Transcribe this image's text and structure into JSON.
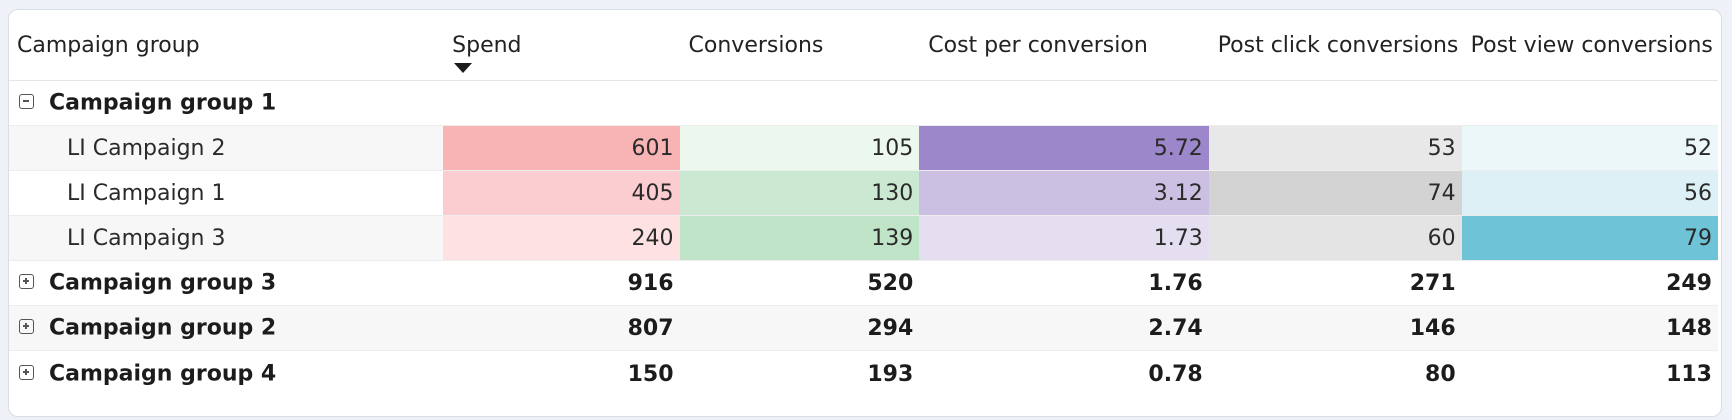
{
  "columns": {
    "group": "Campaign group",
    "spend": "Spend",
    "conversions": "Conversions",
    "cost_per_conversion": "Cost per conversion",
    "post_click": "Post click conversions",
    "post_view": "Post view conversions"
  },
  "sort": {
    "column": "Spend",
    "direction": "descending"
  },
  "groups": [
    {
      "name": "Campaign group 1",
      "expanded": true,
      "toggle_icon": "collapse-icon",
      "children": [
        {
          "name": "LI Campaign 2",
          "spend": "601",
          "conversions": "105",
          "cost_per_conversion": "5.72",
          "post_click": "53",
          "post_view": "52",
          "colors": {
            "spend": "#f8b3b5",
            "conversions": "#ecf7ee",
            "cost_per_conversion": "#9b87c9",
            "post_click": "#e8e8e8",
            "post_view": "#ecf7f9"
          }
        },
        {
          "name": "LI Campaign 1",
          "spend": "405",
          "conversions": "130",
          "cost_per_conversion": "3.12",
          "post_click": "74",
          "post_view": "56",
          "colors": {
            "spend": "#fbcdd0",
            "conversions": "#cbe9d2",
            "cost_per_conversion": "#cbc0e2",
            "post_click": "#d3d3d3",
            "post_view": "#dcf0f5"
          }
        },
        {
          "name": "LI Campaign 3",
          "spend": "240",
          "conversions": "139",
          "cost_per_conversion": "1.73",
          "post_click": "60",
          "post_view": "79",
          "colors": {
            "spend": "#fde1e3",
            "conversions": "#bfe4c8",
            "cost_per_conversion": "#e5ddf0",
            "post_click": "#e4e4e4",
            "post_view": "#6fc3d6"
          }
        }
      ]
    },
    {
      "name": "Campaign group 3",
      "expanded": false,
      "toggle_icon": "expand-icon",
      "spend": "916",
      "conversions": "520",
      "cost_per_conversion": "1.76",
      "post_click": "271",
      "post_view": "249"
    },
    {
      "name": "Campaign group 2",
      "expanded": false,
      "toggle_icon": "expand-icon",
      "spend": "807",
      "conversions": "294",
      "cost_per_conversion": "2.74",
      "post_click": "146",
      "post_view": "148"
    },
    {
      "name": "Campaign group 4",
      "expanded": false,
      "toggle_icon": "expand-icon",
      "spend": "150",
      "conversions": "193",
      "cost_per_conversion": "0.78",
      "post_click": "80",
      "post_view": "113"
    }
  ]
}
